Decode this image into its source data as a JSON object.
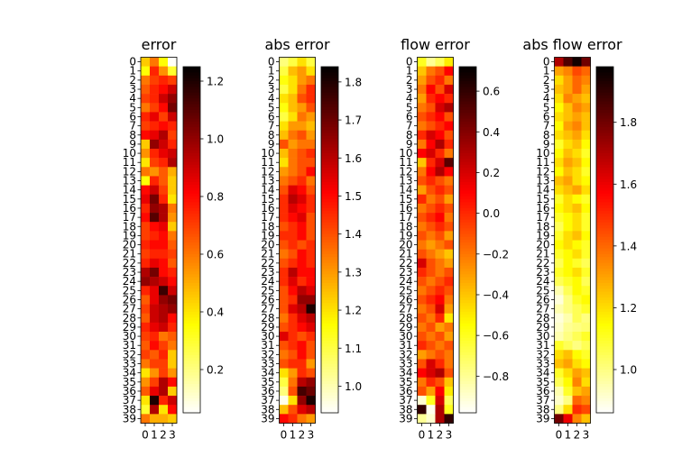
{
  "chart_data": [
    {
      "type": "heatmap",
      "title": "error",
      "colormap": "hot_r",
      "x_ticks": [
        "0",
        "1",
        "2",
        "3"
      ],
      "y_ticks": [
        "0",
        "1",
        "2",
        "3",
        "4",
        "5",
        "6",
        "7",
        "8",
        "9",
        "10",
        "11",
        "12",
        "13",
        "14",
        "15",
        "16",
        "17",
        "18",
        "19",
        "20",
        "21",
        "22",
        "23",
        "24",
        "25",
        "26",
        "27",
        "28",
        "29",
        "30",
        "31",
        "32",
        "33",
        "34",
        "35",
        "36",
        "37",
        "38",
        "39"
      ],
      "colorbar_ticks": [
        "0.2",
        "0.4",
        "0.6",
        "0.8",
        "1.0",
        "1.2"
      ],
      "colorbar_tick_values": [
        0.2,
        0.4,
        0.6,
        0.8,
        1.0,
        1.2
      ],
      "vmin": 0.05,
      "vmax": 1.25,
      "values": [
        [
          0.45,
          0.6,
          0.35,
          0.06
        ],
        [
          0.35,
          0.75,
          0.55,
          0.3
        ],
        [
          0.6,
          0.7,
          0.75,
          0.7
        ],
        [
          0.65,
          0.75,
          0.8,
          0.9
        ],
        [
          0.7,
          0.75,
          0.9,
          1.0
        ],
        [
          0.6,
          0.7,
          0.8,
          1.05
        ],
        [
          0.75,
          0.85,
          0.7,
          0.9
        ],
        [
          0.7,
          0.75,
          0.8,
          0.75
        ],
        [
          0.8,
          0.85,
          0.95,
          0.7
        ],
        [
          0.45,
          1.0,
          0.9,
          0.75
        ],
        [
          0.55,
          0.75,
          0.85,
          0.9
        ],
        [
          0.4,
          0.7,
          0.75,
          0.95
        ],
        [
          0.6,
          0.55,
          0.65,
          0.5
        ],
        [
          0.35,
          0.75,
          0.65,
          0.45
        ],
        [
          0.8,
          0.9,
          0.7,
          0.45
        ],
        [
          0.85,
          1.05,
          0.75,
          0.4
        ],
        [
          0.75,
          1.0,
          0.95,
          0.6
        ],
        [
          0.8,
          1.1,
          0.95,
          0.55
        ],
        [
          0.7,
          0.8,
          0.85,
          0.45
        ],
        [
          0.7,
          0.75,
          0.8,
          0.6
        ],
        [
          0.75,
          0.8,
          0.8,
          0.65
        ],
        [
          0.7,
          0.75,
          0.75,
          0.7
        ],
        [
          0.75,
          0.85,
          0.8,
          0.65
        ],
        [
          0.95,
          1.05,
          0.8,
          0.75
        ],
        [
          1.0,
          0.95,
          0.9,
          0.8
        ],
        [
          0.75,
          0.85,
          1.15,
          0.9
        ],
        [
          0.65,
          0.85,
          1.0,
          1.05
        ],
        [
          0.7,
          0.9,
          0.95,
          1.0
        ],
        [
          0.65,
          0.9,
          0.95,
          0.8
        ],
        [
          0.75,
          0.85,
          0.9,
          0.75
        ],
        [
          0.7,
          0.75,
          0.6,
          0.65
        ],
        [
          0.65,
          0.8,
          0.7,
          0.6
        ],
        [
          0.7,
          0.65,
          0.75,
          0.45
        ],
        [
          0.6,
          0.7,
          0.7,
          0.45
        ],
        [
          0.4,
          0.55,
          0.7,
          0.55
        ],
        [
          0.55,
          0.7,
          0.95,
          0.8
        ],
        [
          0.65,
          0.85,
          0.95,
          0.45
        ],
        [
          0.4,
          1.2,
          0.75,
          0.9
        ],
        [
          0.3,
          0.95,
          0.4,
          0.8
        ],
        [
          0.6,
          0.5,
          0.5,
          0.45
        ]
      ]
    },
    {
      "type": "heatmap",
      "title": "abs error",
      "colormap": "hot_r",
      "x_ticks": [
        "0",
        "1",
        "2",
        "3"
      ],
      "y_ticks": [
        "0",
        "1",
        "2",
        "3",
        "4",
        "5",
        "6",
        "7",
        "8",
        "9",
        "10",
        "11",
        "12",
        "13",
        "14",
        "15",
        "16",
        "17",
        "18",
        "19",
        "20",
        "21",
        "22",
        "23",
        "24",
        "25",
        "26",
        "27",
        "28",
        "29",
        "30",
        "31",
        "32",
        "33",
        "34",
        "35",
        "36",
        "37",
        "38",
        "39"
      ],
      "colorbar_ticks": [
        "1.0",
        "1.1",
        "1.2",
        "1.3",
        "1.4",
        "1.5",
        "1.6",
        "1.7",
        "1.8"
      ],
      "colorbar_tick_values": [
        1.0,
        1.1,
        1.2,
        1.3,
        1.4,
        1.5,
        1.6,
        1.7,
        1.8
      ],
      "vmin": 0.93,
      "vmax": 1.84,
      "values": [
        [
          1.05,
          1.1,
          1.2,
          1.1
        ],
        [
          1.1,
          1.25,
          1.3,
          1.2
        ],
        [
          1.15,
          1.2,
          1.3,
          1.35
        ],
        [
          1.1,
          1.2,
          1.35,
          1.45
        ],
        [
          1.2,
          1.25,
          1.4,
          1.45
        ],
        [
          1.15,
          1.25,
          1.3,
          1.4
        ],
        [
          1.1,
          1.2,
          1.35,
          1.3
        ],
        [
          1.2,
          1.3,
          1.3,
          1.25
        ],
        [
          1.25,
          1.35,
          1.4,
          1.3
        ],
        [
          1.4,
          1.3,
          1.35,
          1.35
        ],
        [
          1.25,
          1.35,
          1.4,
          1.45
        ],
        [
          1.2,
          1.35,
          1.4,
          1.4
        ],
        [
          1.3,
          1.35,
          1.4,
          1.5
        ],
        [
          1.35,
          1.4,
          1.45,
          1.35
        ],
        [
          1.4,
          1.55,
          1.5,
          1.4
        ],
        [
          1.45,
          1.6,
          1.55,
          1.45
        ],
        [
          1.45,
          1.55,
          1.5,
          1.45
        ],
        [
          1.45,
          1.5,
          1.55,
          1.4
        ],
        [
          1.4,
          1.45,
          1.5,
          1.4
        ],
        [
          1.45,
          1.45,
          1.5,
          1.4
        ],
        [
          1.4,
          1.45,
          1.4,
          1.45
        ],
        [
          1.35,
          1.4,
          1.5,
          1.45
        ],
        [
          1.4,
          1.45,
          1.5,
          1.45
        ],
        [
          1.45,
          1.6,
          1.5,
          1.5
        ],
        [
          1.45,
          1.55,
          1.45,
          1.5
        ],
        [
          1.4,
          1.5,
          1.6,
          1.55
        ],
        [
          1.4,
          1.45,
          1.65,
          1.65
        ],
        [
          1.4,
          1.55,
          1.6,
          1.8
        ],
        [
          1.35,
          1.45,
          1.55,
          1.6
        ],
        [
          1.4,
          1.45,
          1.5,
          1.55
        ],
        [
          1.55,
          1.45,
          1.4,
          1.45
        ],
        [
          1.4,
          1.45,
          1.5,
          1.4
        ],
        [
          1.35,
          1.4,
          1.5,
          1.4
        ],
        [
          1.4,
          1.45,
          1.45,
          1.3
        ],
        [
          1.2,
          1.3,
          1.45,
          1.4
        ],
        [
          1.1,
          1.35,
          1.6,
          1.65
        ],
        [
          1.05,
          1.4,
          1.75,
          1.7
        ],
        [
          0.95,
          1.2,
          1.65,
          1.8
        ],
        [
          1.25,
          1.4,
          1.55,
          1.6
        ],
        [
          1.5,
          1.45,
          1.35,
          1.3
        ]
      ]
    },
    {
      "type": "heatmap",
      "title": "flow error",
      "colormap": "hot_r",
      "x_ticks": [
        "0",
        "1",
        "2",
        "3"
      ],
      "y_ticks": [
        "0",
        "1",
        "2",
        "3",
        "4",
        "5",
        "6",
        "7",
        "8",
        "9",
        "10",
        "11",
        "12",
        "13",
        "14",
        "15",
        "16",
        "17",
        "18",
        "19",
        "20",
        "21",
        "22",
        "23",
        "24",
        "25",
        "26",
        "27",
        "28",
        "29",
        "30",
        "31",
        "32",
        "33",
        "34",
        "35",
        "36",
        "37",
        "38",
        "39"
      ],
      "colorbar_ticks": [
        "−0.8",
        "−0.6",
        "−0.4",
        "−0.2",
        "0.0",
        "0.2",
        "0.4",
        "0.6"
      ],
      "colorbar_tick_values": [
        -0.8,
        -0.6,
        -0.4,
        -0.2,
        0.0,
        0.2,
        0.4,
        0.6
      ],
      "vmin": -0.98,
      "vmax": 0.72,
      "values": [
        [
          -0.6,
          -0.8,
          -0.7,
          -0.5
        ],
        [
          -0.4,
          -0.2,
          -0.1,
          0.1
        ],
        [
          -0.3,
          -0.1,
          0.0,
          -0.2
        ],
        [
          -0.2,
          0.1,
          -0.1,
          0.2
        ],
        [
          -0.3,
          0.0,
          0.1,
          0.0
        ],
        [
          -0.2,
          -0.1,
          0.2,
          0.3
        ],
        [
          -0.1,
          0.0,
          0.1,
          -0.1
        ],
        [
          -0.2,
          -0.1,
          0.0,
          0.1
        ],
        [
          0.0,
          0.2,
          0.1,
          -0.1
        ],
        [
          -0.2,
          0.1,
          0.3,
          0.0
        ],
        [
          0.1,
          0.2,
          0.0,
          -0.2
        ],
        [
          -0.4,
          0.0,
          0.2,
          0.5
        ],
        [
          -0.2,
          0.1,
          0.3,
          0.1
        ],
        [
          -0.1,
          0.0,
          -0.1,
          -0.2
        ],
        [
          -0.3,
          -0.1,
          0.0,
          -0.1
        ],
        [
          0.0,
          -0.2,
          -0.1,
          -0.3
        ],
        [
          -0.2,
          -0.1,
          0.0,
          -0.1
        ],
        [
          -0.1,
          0.0,
          0.1,
          -0.2
        ],
        [
          -0.2,
          -0.1,
          0.0,
          -0.1
        ],
        [
          -0.1,
          -0.2,
          -0.1,
          -0.3
        ],
        [
          -0.2,
          -0.3,
          -0.2,
          -0.1
        ],
        [
          -0.1,
          -0.2,
          -0.3,
          -0.4
        ],
        [
          0.2,
          -0.1,
          -0.2,
          -0.3
        ],
        [
          0.0,
          -0.1,
          -0.2,
          -0.1
        ],
        [
          -0.1,
          -0.2,
          -0.1,
          0.0
        ],
        [
          -0.2,
          -0.1,
          0.0,
          -0.1
        ],
        [
          -0.1,
          0.0,
          0.1,
          -0.2
        ],
        [
          -0.2,
          -0.1,
          0.2,
          -0.3
        ],
        [
          -0.1,
          -0.2,
          0.0,
          -0.5
        ],
        [
          -0.2,
          -0.1,
          -0.3,
          -0.2
        ],
        [
          -0.1,
          -0.2,
          -0.1,
          -0.3
        ],
        [
          0.0,
          -0.1,
          -0.2,
          -0.1
        ],
        [
          -0.3,
          -0.2,
          -0.1,
          -0.2
        ],
        [
          -0.1,
          0.2,
          0.0,
          -0.2
        ],
        [
          0.1,
          0.2,
          0.3,
          -0.1
        ],
        [
          -0.2,
          0.0,
          -0.1,
          -0.4
        ],
        [
          -0.1,
          -0.3,
          0.1,
          -0.5
        ],
        [
          -0.9,
          -0.6,
          0.2,
          -0.7
        ],
        [
          0.6,
          -0.95,
          0.3,
          -0.6
        ],
        [
          -0.8,
          -0.9,
          0.3,
          0.6
        ]
      ]
    },
    {
      "type": "heatmap",
      "title": "abs flow error",
      "colormap": "hot_r",
      "x_ticks": [
        "0",
        "1",
        "2",
        "3"
      ],
      "y_ticks": [
        "0",
        "1",
        "2",
        "3",
        "4",
        "5",
        "6",
        "7",
        "8",
        "9",
        "10",
        "11",
        "12",
        "13",
        "14",
        "15",
        "16",
        "17",
        "18",
        "19",
        "20",
        "21",
        "22",
        "23",
        "24",
        "25",
        "26",
        "27",
        "28",
        "29",
        "30",
        "31",
        "32",
        "33",
        "34",
        "35",
        "36",
        "37",
        "38",
        "39"
      ],
      "colorbar_ticks": [
        "1.0",
        "1.2",
        "1.4",
        "1.6",
        "1.8"
      ],
      "colorbar_tick_values": [
        1.0,
        1.2,
        1.4,
        1.6,
        1.8
      ],
      "vmin": 0.86,
      "vmax": 1.98,
      "values": [
        [
          1.7,
          1.85,
          1.95,
          1.8
        ],
        [
          1.3,
          1.35,
          1.45,
          1.4
        ],
        [
          1.2,
          1.3,
          1.4,
          1.35
        ],
        [
          1.25,
          1.3,
          1.4,
          1.3
        ],
        [
          1.2,
          1.35,
          1.3,
          1.25
        ],
        [
          1.15,
          1.25,
          1.35,
          1.3
        ],
        [
          1.2,
          1.25,
          1.3,
          1.25
        ],
        [
          1.15,
          1.3,
          1.35,
          1.25
        ],
        [
          1.2,
          1.25,
          1.3,
          1.2
        ],
        [
          1.1,
          1.2,
          1.25,
          1.15
        ],
        [
          1.15,
          1.25,
          1.2,
          1.1
        ],
        [
          1.2,
          1.3,
          1.25,
          1.15
        ],
        [
          1.15,
          1.25,
          1.2,
          1.1
        ],
        [
          1.25,
          1.3,
          1.2,
          1.15
        ],
        [
          1.2,
          1.25,
          1.3,
          1.2
        ],
        [
          1.1,
          1.2,
          1.15,
          1.1
        ],
        [
          1.15,
          1.2,
          1.25,
          1.15
        ],
        [
          1.1,
          1.15,
          1.2,
          1.1
        ],
        [
          1.05,
          1.15,
          1.2,
          1.1
        ],
        [
          1.1,
          1.2,
          1.25,
          1.15
        ],
        [
          1.15,
          1.2,
          1.15,
          1.1
        ],
        [
          1.1,
          1.15,
          1.2,
          1.1
        ],
        [
          1.05,
          1.15,
          1.1,
          1.05
        ],
        [
          1.1,
          1.15,
          1.2,
          1.1
        ],
        [
          1.05,
          1.1,
          1.15,
          1.05
        ],
        [
          0.95,
          1.05,
          1.15,
          1.1
        ],
        [
          0.9,
          1.0,
          1.1,
          1.15
        ],
        [
          0.95,
          1.0,
          1.05,
          1.1
        ],
        [
          0.9,
          0.95,
          1.05,
          1.0
        ],
        [
          0.92,
          0.98,
          1.0,
          1.02
        ],
        [
          0.95,
          1.0,
          1.05,
          1.1
        ],
        [
          1.1,
          1.05,
          1.0,
          1.05
        ],
        [
          1.2,
          1.25,
          1.15,
          1.1
        ],
        [
          1.25,
          1.3,
          1.2,
          1.15
        ],
        [
          1.1,
          1.2,
          1.3,
          1.25
        ],
        [
          1.05,
          1.15,
          1.35,
          1.2
        ],
        [
          0.95,
          1.1,
          1.25,
          1.3
        ],
        [
          0.92,
          1.0,
          1.4,
          1.35
        ],
        [
          1.0,
          1.2,
          1.5,
          1.45
        ],
        [
          1.8,
          1.6,
          1.35,
          1.25
        ]
      ]
    }
  ]
}
